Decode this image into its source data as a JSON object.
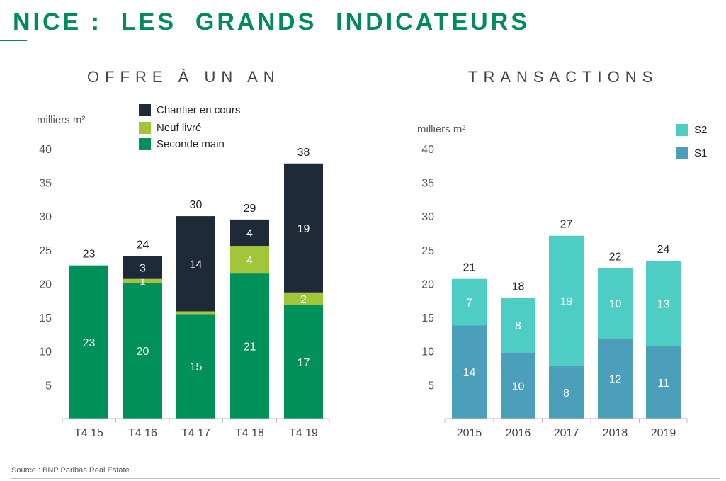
{
  "page": {
    "title": "NICE :  LES  GRANDS  INDICATEURS",
    "source": "Source : BNP Paribas Real Estate"
  },
  "colors": {
    "title_green": "#008c5a",
    "seconde_main": "#00905a",
    "neuf_livre": "#a3c539",
    "chantier": "#1f2a38",
    "s1": "#4c9fbb",
    "s2": "#4ecdc5"
  },
  "chart_data": [
    {
      "type": "bar",
      "stacked": true,
      "title": "OFFRE À UN AN",
      "ylabel": "milliers m²",
      "ylim": [
        0,
        40
      ],
      "yticks": [
        5,
        10,
        15,
        20,
        25,
        30,
        35,
        40
      ],
      "categories": [
        "T4 15",
        "T4 16",
        "T4 17",
        "T4 18",
        "T4 19"
      ],
      "series": [
        {
          "name": "Seconde main",
          "values": [
            22.7,
            20.1,
            15.5,
            21.5,
            16.8
          ],
          "labels": [
            "23",
            "20",
            "15",
            "21",
            "17"
          ]
        },
        {
          "name": "Neuf livré",
          "values": [
            0,
            0.6,
            0.4,
            4.1,
            1.9
          ],
          "labels": [
            "",
            "1",
            "",
            "4",
            "2"
          ]
        },
        {
          "name": "Chantier en cours",
          "values": [
            0,
            3.4,
            14.1,
            3.9,
            19.1
          ],
          "labels": [
            "",
            "3",
            "14",
            "4",
            "19"
          ]
        }
      ],
      "totals": [
        "23",
        "24",
        "30",
        "29",
        "38"
      ],
      "legend_position": "top"
    },
    {
      "type": "bar",
      "stacked": true,
      "title": "TRANSACTIONS",
      "ylabel": "milliers m²",
      "ylim": [
        0,
        40
      ],
      "yticks": [
        5,
        10,
        15,
        20,
        25,
        30,
        35,
        40
      ],
      "categories": [
        "2015",
        "2016",
        "2017",
        "2018",
        "2019"
      ],
      "series": [
        {
          "name": "S1",
          "values": [
            13.8,
            9.8,
            7.8,
            11.9,
            10.7
          ],
          "labels": [
            "14",
            "10",
            "8",
            "12",
            "11"
          ]
        },
        {
          "name": "S2",
          "values": [
            6.9,
            8.1,
            19.3,
            10.4,
            12.7
          ],
          "labels": [
            "7",
            "8",
            "19",
            "10",
            "13"
          ]
        }
      ],
      "totals": [
        "21",
        "18",
        "27",
        "22",
        "24"
      ],
      "legend_position": "top-right"
    }
  ]
}
